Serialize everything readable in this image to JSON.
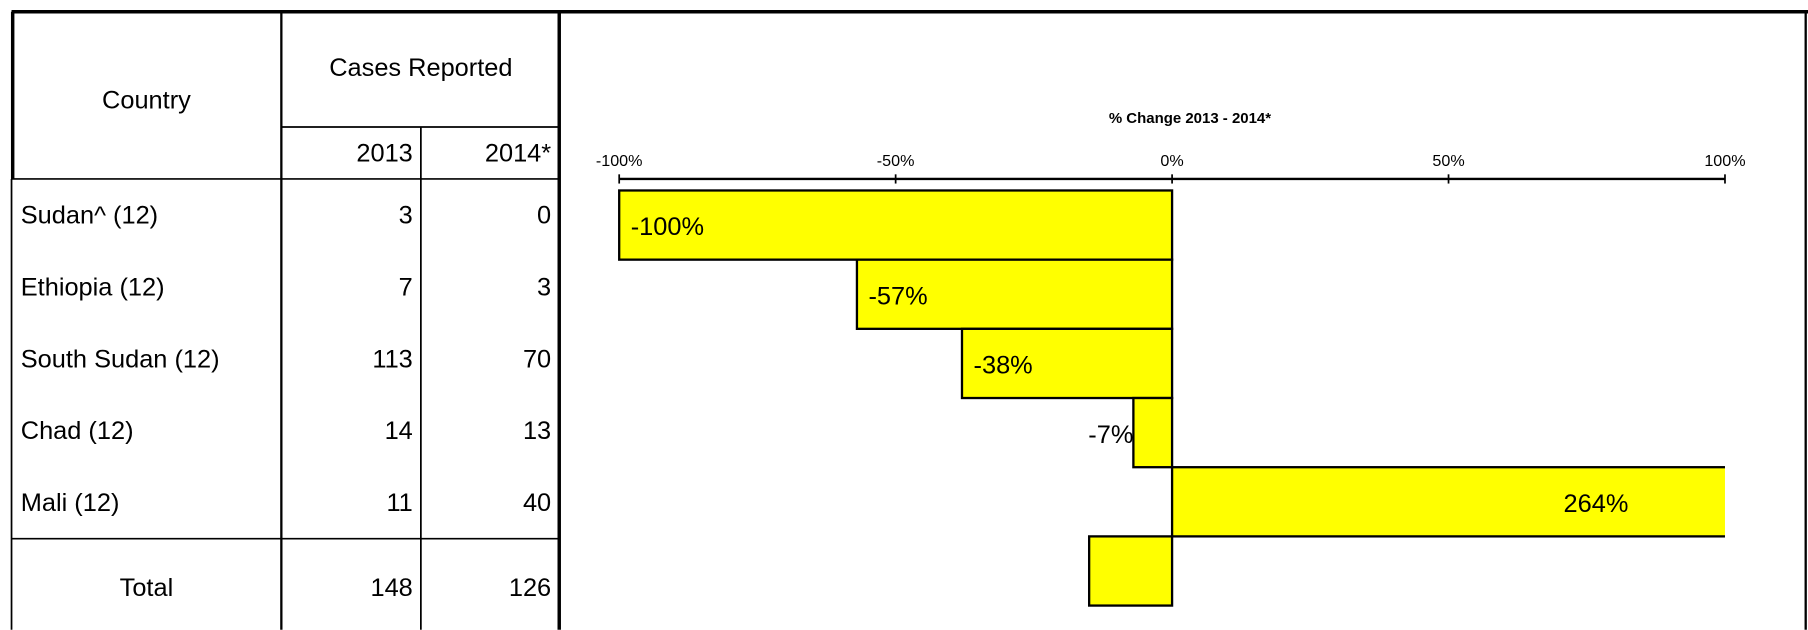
{
  "table": {
    "headers": {
      "country": "Country",
      "cases": "Cases Reported",
      "year1": "2013",
      "year2": "2014*"
    },
    "rows": [
      [
        "Sudan^ (12)",
        3,
        0
      ],
      [
        "Ethiopia (12)",
        7,
        3
      ],
      [
        "South Sudan (12)",
        113,
        70
      ],
      [
        "Chad (12)",
        14,
        13
      ],
      [
        "Mali (12)",
        11,
        40
      ]
    ],
    "total": [
      "Total",
      148,
      126
    ]
  },
  "chart_data": {
    "type": "bar",
    "orientation": "horizontal",
    "title": "% Change 2013 - 2014*",
    "values": [
      -100,
      -57,
      -38,
      -7,
      264,
      -15
    ],
    "value_labels": [
      "-100%",
      "-57%",
      "-38%",
      "-7%",
      "264%",
      null
    ],
    "color": "#ffff00",
    "xlim": [
      -100,
      100
    ],
    "xticks": [
      {
        "value": -100,
        "label": "-100%"
      },
      {
        "value": -50,
        "label": "-50%"
      },
      {
        "value": 0,
        "label": "0%"
      },
      {
        "value": 50,
        "label": "50%"
      },
      {
        "value": 100,
        "label": "100%"
      }
    ]
  }
}
